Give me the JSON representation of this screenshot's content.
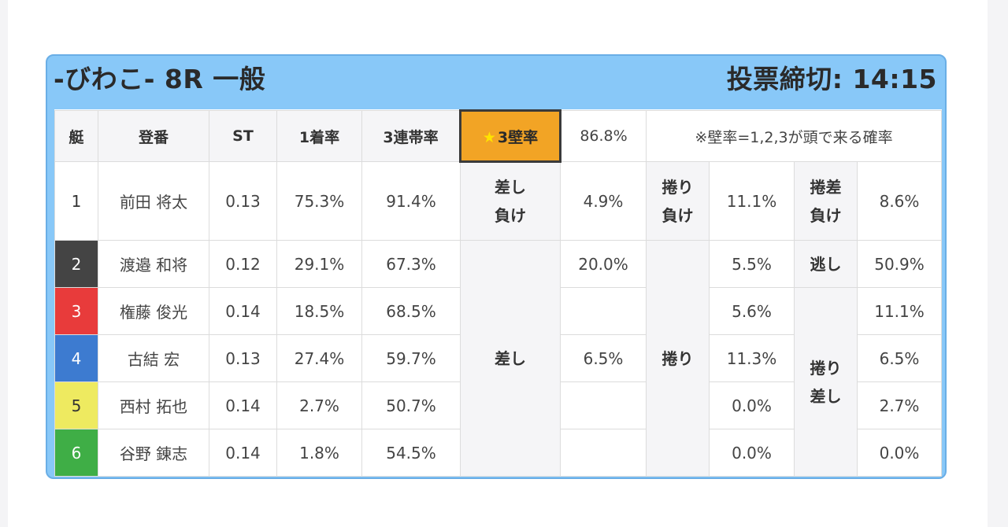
{
  "header": {
    "title": "-びわこ- 8R 一般",
    "deadline": "投票締切: 14:15"
  },
  "columns": {
    "lane": "艇",
    "reg": "登番",
    "st": "ST",
    "first_rate": "1着率",
    "top3_rate": "3連帯率",
    "wall_star": "★",
    "wall_label": "3壁率",
    "wall_value": "86.8%",
    "note": "※壁率=1,2,3が頭で来る確率"
  },
  "rows": [
    {
      "lane": "1",
      "name": "前田 将太",
      "st": "0.13",
      "first": "75.3%",
      "top3": "91.4%"
    },
    {
      "lane": "2",
      "name": "渡邉 和将",
      "st": "0.12",
      "first": "29.1%",
      "top3": "67.3%"
    },
    {
      "lane": "3",
      "name": "権藤 俊光",
      "st": "0.14",
      "first": "18.5%",
      "top3": "68.5%"
    },
    {
      "lane": "4",
      "name": "古結 宏",
      "st": "0.13",
      "first": "27.4%",
      "top3": "59.7%"
    },
    {
      "lane": "5",
      "name": "西村 拓也",
      "st": "0.14",
      "first": "2.7%",
      "top3": "50.7%"
    },
    {
      "lane": "6",
      "name": "谷野 錬志",
      "st": "0.14",
      "first": "1.8%",
      "top3": "54.5%"
    }
  ],
  "stats": {
    "sashi_make_a": "差し",
    "sashi_make_b": "負け",
    "sashi_make_val": "4.9%",
    "makuri_make_a": "捲り",
    "makuri_make_b": "負け",
    "makuri_make_val": "11.1%",
    "makurizashi_make_a": "捲差",
    "makurizashi_make_b": "負け",
    "makurizashi_make_val": "8.6%",
    "sashi": "差し",
    "sashi_vals": [
      "20.0%",
      "",
      "6.5%",
      "",
      ""
    ],
    "makuri": "捲り",
    "makuri_vals": [
      "5.5%",
      "5.6%",
      "11.3%",
      "0.0%",
      "0.0%"
    ],
    "nige": "逃し",
    "nige_val": "50.9%",
    "makurizashi_a": "捲り",
    "makurizashi_b": "差し",
    "makurizashi_vals": [
      "11.1%",
      "6.5%",
      "2.7%",
      "0.0%"
    ]
  },
  "colors": {
    "panel": "#88c8f8",
    "star_cell": "#f2a425",
    "lane_colors": [
      "#ffffff",
      "#444444",
      "#e83b3b",
      "#3d7bd0",
      "#eeea60",
      "#3fae46"
    ]
  }
}
